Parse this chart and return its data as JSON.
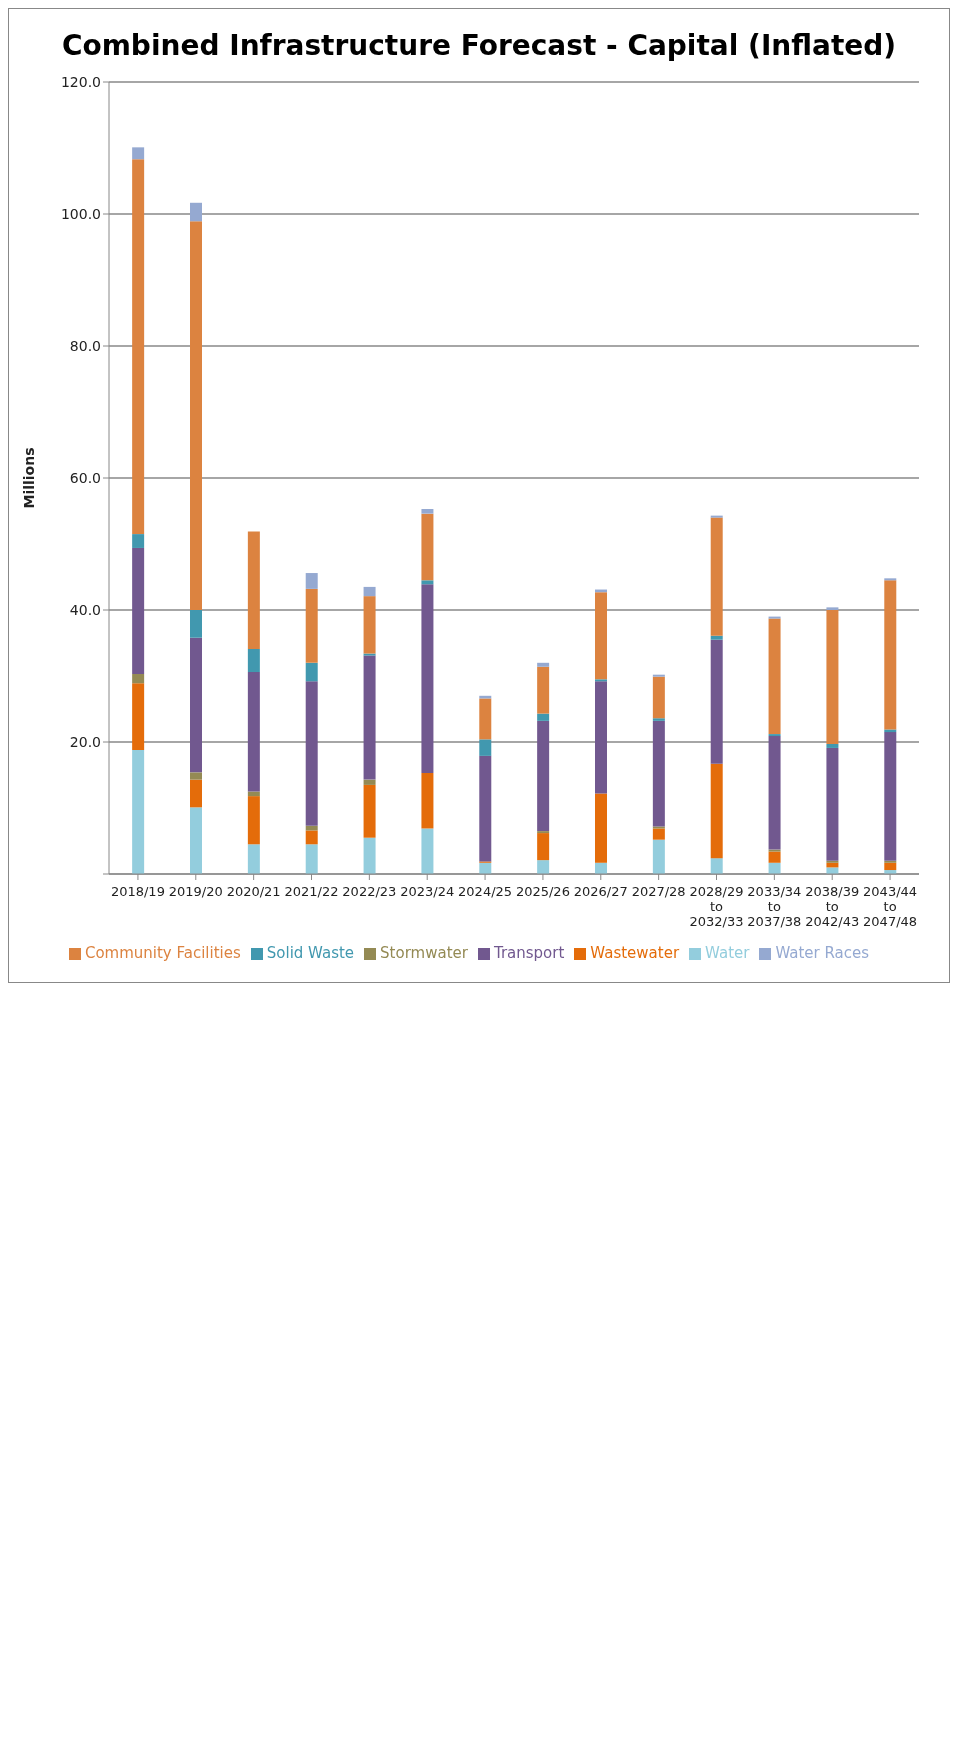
{
  "chart_data": {
    "type": "bar",
    "title": "Combined Infrastructure Forecast - Capital (Inflated)",
    "ylabel": "Millions",
    "stacked": true,
    "grid": "y",
    "legend": "bottom",
    "categories": [
      "2018/19",
      "2019/20",
      "2020/21",
      "2021/22",
      "2022/23",
      "2023/24",
      "2024/25",
      "2025/26",
      "2026/27",
      "2027/28",
      "2028/29 to 2032/33",
      "2033/34 to 2037/38",
      "2038/39 to 2042/43",
      "2043/44 to 2047/48"
    ],
    "ylim": [
      0,
      120
    ],
    "yticks": [
      {
        "value": 0,
        "label": null
      },
      {
        "value": 20,
        "label": "20.0"
      },
      {
        "value": 40,
        "label": "40.0"
      },
      {
        "value": 60,
        "label": "60.0"
      },
      {
        "value": 80,
        "label": "80.0"
      },
      {
        "value": 100,
        "label": "100.0"
      },
      {
        "value": 120,
        "label": "120.0"
      }
    ],
    "series": [
      {
        "name": "Water",
        "color": "#93cddd",
        "values": [
          18.8,
          10.1,
          4.5,
          4.5,
          5.5,
          6.9,
          1.7,
          2.1,
          1.7,
          5.2,
          2.4,
          1.7,
          1.0,
          0.6
        ]
      },
      {
        "name": "Wastewater",
        "color": "#e46c0a",
        "values": [
          10.1,
          4.2,
          7.3,
          2.1,
          8.0,
          8.4,
          0.2,
          4.1,
          10.5,
          1.7,
          14.3,
          1.7,
          0.7,
          1.1
        ]
      },
      {
        "name": "Stormwater",
        "color": "#948a54",
        "values": [
          1.4,
          1.1,
          0.7,
          0.7,
          0.8,
          0,
          null,
          0.3,
          0,
          0.3,
          0,
          0.3,
          0.3,
          0.3
        ]
      },
      {
        "name": "Transport",
        "color": "#71588f",
        "values": [
          19.1,
          20.4,
          18.1,
          21.9,
          18.8,
          28.6,
          16.0,
          16.7,
          17.0,
          16.0,
          18.8,
          17.2,
          17.1,
          19.5
        ]
      },
      {
        "name": "Solid Waste",
        "color": "#4198af",
        "values": [
          2.1,
          4.2,
          3.5,
          2.8,
          0.3,
          0.6,
          2.5,
          1.1,
          0.3,
          0.4,
          0.6,
          0.3,
          0.6,
          0.4
        ]
      },
      {
        "name": "Community Facilities",
        "color": "#dc8340",
        "values": [
          56.8,
          58.9,
          17.8,
          11.2,
          8.7,
          10.1,
          6.2,
          7.1,
          13.2,
          6.3,
          17.9,
          17.5,
          20.3,
          22.6
        ]
      },
      {
        "name": "Water Races",
        "color": "#95a9d1",
        "values": [
          1.8,
          2.8,
          0,
          2.4,
          1.4,
          0.7,
          0.4,
          0.6,
          0.4,
          0.3,
          0.3,
          0.3,
          0.4,
          0.3
        ]
      }
    ]
  }
}
